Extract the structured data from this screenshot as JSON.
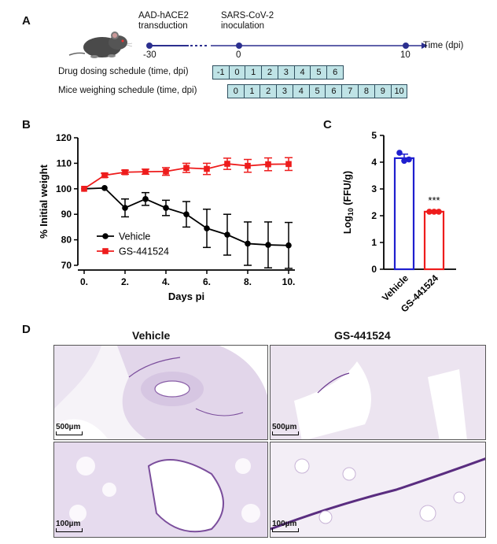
{
  "panelA": {
    "letter": "A",
    "event1": [
      "AAD-hACE2",
      "transduction"
    ],
    "event2": [
      "SARS-CoV-2",
      "inoculation"
    ],
    "tick_labels": [
      "-30",
      "0",
      "10"
    ],
    "axis_label": "Time (dpi)",
    "drug_label": "Drug dosing schedule (time, dpi)",
    "drug_days": [
      "-1",
      "0",
      "1",
      "2",
      "3",
      "4",
      "5",
      "6"
    ],
    "weigh_label": "Mice weighing schedule (time, dpi)",
    "weigh_days": [
      "0",
      "1",
      "2",
      "3",
      "4",
      "5",
      "6",
      "7",
      "8",
      "9",
      "10"
    ],
    "colors": {
      "timeline": "#2b2f8f",
      "cell_fill": "#bfe3e6"
    }
  },
  "panelB": {
    "letter": "B"
  },
  "panelC": {
    "letter": "C"
  },
  "panelD": {
    "letter": "D",
    "col_titles": [
      "Vehicle",
      "GS-441524"
    ],
    "scale_top": "500µm",
    "scale_bottom": "100µm"
  },
  "chart_data": [
    {
      "type": "line",
      "ylabel": "% Initial weight",
      "xlabel": "Days pi",
      "xlim": [
        0,
        10
      ],
      "ylim": [
        70,
        120
      ],
      "xticks": [
        "0.",
        "2.",
        "4.",
        "6.",
        "8.",
        "10."
      ],
      "yticks": [
        "70",
        "80",
        "90",
        "100",
        "110",
        "120"
      ],
      "legend": "lower-left",
      "series": [
        {
          "name": "Vehicle",
          "color": "#000000",
          "marker": "circle",
          "x": [
            0,
            1,
            2,
            3,
            4,
            5,
            6,
            7,
            8,
            9,
            10
          ],
          "y": [
            100,
            100.3,
            92.5,
            96,
            92.5,
            90,
            84.5,
            82,
            78.5,
            78,
            77.8
          ],
          "err": [
            0,
            0,
            3.5,
            2.5,
            3,
            5,
            7.5,
            8,
            8.5,
            9,
            9
          ]
        },
        {
          "name": "GS-441524",
          "color": "#ee1c1c",
          "marker": "square",
          "x": [
            0,
            1,
            2,
            3,
            4,
            5,
            6,
            7,
            8,
            9,
            10
          ],
          "y": [
            100,
            105.3,
            106.5,
            106.7,
            106.8,
            108.2,
            107.8,
            109.8,
            109,
            109.6,
            109.7
          ],
          "err": [
            0,
            0.8,
            0.8,
            1,
            1.5,
            1.8,
            2.2,
            2.2,
            2.5,
            2.5,
            2.5
          ]
        }
      ]
    },
    {
      "type": "bar",
      "ylabel": "Log10 (FFU/g)",
      "ylabel_main": "Log",
      "ylabel_sub": "10",
      "ylabel_rest": " (FFU/g)",
      "ylim": [
        0,
        5
      ],
      "yticks": [
        "0",
        "1",
        "2",
        "3",
        "4",
        "5"
      ],
      "categories": [
        "Vehicle",
        "GS-441524"
      ],
      "values": [
        4.15,
        2.15
      ],
      "err": [
        0.15,
        0.02
      ],
      "points": [
        [
          4.35,
          4.05,
          4.1
        ],
        [
          2.15,
          2.15,
          2.15
        ]
      ],
      "colors": [
        "#1f1fcf",
        "#ee1c1c"
      ],
      "annotation": "***"
    }
  ]
}
